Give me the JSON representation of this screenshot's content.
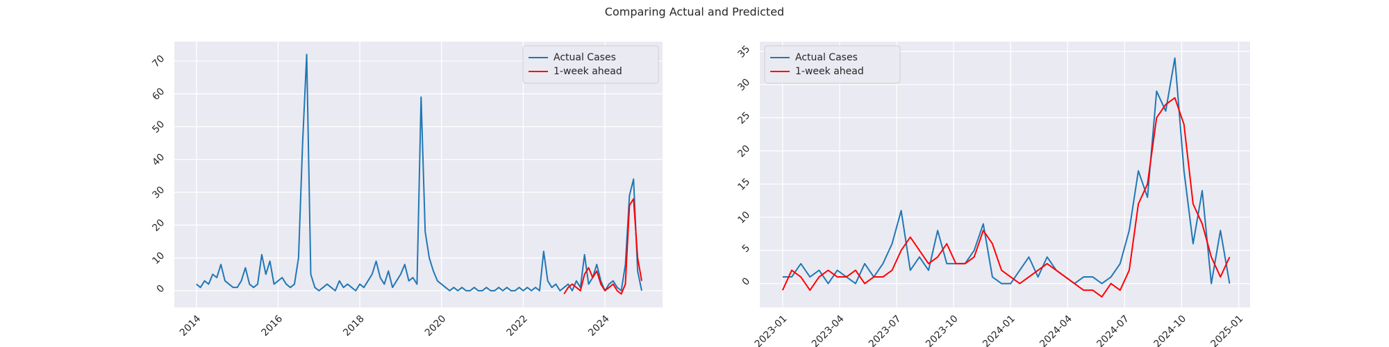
{
  "title": "Comparing Actual and Predicted",
  "chart_data": [
    {
      "type": "line",
      "legend": "upper right",
      "grid": true,
      "ylim": [
        -5.1,
        75.9
      ],
      "yticks": [
        0,
        10,
        20,
        30,
        40,
        50,
        60,
        70
      ],
      "xlim": [
        2013.46,
        2025.41
      ],
      "xticks": [
        2014,
        2016,
        2018,
        2020,
        2022,
        2024
      ],
      "series": [
        {
          "name": "Actual Cases",
          "color": "#1f77b4",
          "x": [
            2014.0,
            2014.1,
            2014.2,
            2014.3,
            2014.4,
            2014.5,
            2014.6,
            2014.7,
            2014.8,
            2014.9,
            2015.0,
            2015.1,
            2015.2,
            2015.3,
            2015.4,
            2015.5,
            2015.6,
            2015.7,
            2015.8,
            2015.9,
            2016.0,
            2016.1,
            2016.2,
            2016.3,
            2016.4,
            2016.5,
            2016.6,
            2016.7,
            2016.8,
            2016.9,
            2017.0,
            2017.1,
            2017.2,
            2017.3,
            2017.4,
            2017.5,
            2017.6,
            2017.7,
            2017.8,
            2017.9,
            2018.0,
            2018.1,
            2018.2,
            2018.3,
            2018.4,
            2018.5,
            2018.6,
            2018.7,
            2018.8,
            2018.9,
            2019.0,
            2019.1,
            2019.2,
            2019.3,
            2019.4,
            2019.5,
            2019.6,
            2019.7,
            2019.8,
            2019.9,
            2020.0,
            2020.1,
            2020.2,
            2020.3,
            2020.4,
            2020.5,
            2020.6,
            2020.7,
            2020.8,
            2020.9,
            2021.0,
            2021.1,
            2021.2,
            2021.3,
            2021.4,
            2021.5,
            2021.6,
            2021.7,
            2021.8,
            2021.9,
            2022.0,
            2022.1,
            2022.2,
            2022.3,
            2022.4,
            2022.5,
            2022.6,
            2022.7,
            2022.8,
            2022.9,
            2023.0,
            2023.1,
            2023.2,
            2023.3,
            2023.4,
            2023.5,
            2023.6,
            2023.7,
            2023.8,
            2023.9,
            2024.0,
            2024.1,
            2024.2,
            2024.3,
            2024.4,
            2024.5,
            2024.6,
            2024.7,
            2024.8,
            2024.9
          ],
          "values": [
            2,
            1,
            3,
            2,
            5,
            4,
            8,
            3,
            2,
            1,
            1,
            3,
            7,
            2,
            1,
            2,
            11,
            5,
            9,
            2,
            3,
            4,
            2,
            1,
            2,
            10,
            45,
            72,
            5,
            1,
            0,
            1,
            2,
            1,
            0,
            3,
            1,
            2,
            1,
            0,
            2,
            1,
            3,
            5,
            9,
            4,
            2,
            6,
            1,
            3,
            5,
            8,
            3,
            4,
            2,
            59,
            18,
            10,
            6,
            3,
            2,
            1,
            0,
            1,
            0,
            1,
            0,
            0,
            1,
            0,
            0,
            1,
            0,
            0,
            1,
            0,
            1,
            0,
            0,
            1,
            0,
            1,
            0,
            1,
            0,
            12,
            3,
            1,
            2,
            0,
            1,
            2,
            0,
            3,
            1,
            11,
            2,
            4,
            8,
            3,
            0,
            2,
            3,
            1,
            0,
            8,
            29,
            34,
            6,
            0
          ]
        },
        {
          "name": "1-week ahead",
          "color": "#ff0000",
          "x": [
            2023.0,
            2023.1,
            2023.2,
            2023.3,
            2023.4,
            2023.5,
            2023.6,
            2023.7,
            2023.8,
            2023.9,
            2024.0,
            2024.1,
            2024.2,
            2024.3,
            2024.4,
            2024.5,
            2024.6,
            2024.7,
            2024.8,
            2024.9
          ],
          "values": [
            -1,
            1,
            2,
            1,
            0,
            5,
            7,
            4,
            6,
            2,
            0,
            1,
            2,
            0,
            -1,
            2,
            26,
            28,
            10,
            3
          ]
        }
      ]
    },
    {
      "type": "line",
      "legend": "upper left",
      "grid": true,
      "ylim": [
        -3.6,
        36.47
      ],
      "yticks": [
        0,
        5,
        10,
        15,
        20,
        25,
        30,
        35
      ],
      "xlim": [
        2022.9,
        2025.05
      ],
      "xticks": [
        {
          "value": 2023.0,
          "label": "2023-01"
        },
        {
          "value": 2023.25,
          "label": "2023-04"
        },
        {
          "value": 2023.5,
          "label": "2023-07"
        },
        {
          "value": 2023.75,
          "label": "2023-10"
        },
        {
          "value": 2024.0,
          "label": "2024-01"
        },
        {
          "value": 2024.25,
          "label": "2024-04"
        },
        {
          "value": 2024.5,
          "label": "2024-07"
        },
        {
          "value": 2024.75,
          "label": "2024-10"
        },
        {
          "value": 2025.0,
          "label": "2025-01"
        }
      ],
      "series": [
        {
          "name": "Actual Cases",
          "color": "#1f77b4",
          "x": [
            2023.0,
            2023.04,
            2023.08,
            2023.12,
            2023.16,
            2023.2,
            2023.24,
            2023.28,
            2023.32,
            2023.36,
            2023.4,
            2023.44,
            2023.48,
            2023.52,
            2023.56,
            2023.6,
            2023.64,
            2023.68,
            2023.72,
            2023.76,
            2023.8,
            2023.84,
            2023.88,
            2023.92,
            2023.96,
            2024.0,
            2024.04,
            2024.08,
            2024.12,
            2024.16,
            2024.2,
            2024.24,
            2024.28,
            2024.32,
            2024.36,
            2024.4,
            2024.44,
            2024.48,
            2024.52,
            2024.56,
            2024.6,
            2024.64,
            2024.68,
            2024.72,
            2024.76,
            2024.8,
            2024.84,
            2024.88,
            2024.92,
            2024.96
          ],
          "values": [
            1,
            1,
            3,
            1,
            2,
            0,
            2,
            1,
            0,
            3,
            1,
            3,
            6,
            11,
            2,
            4,
            2,
            8,
            3,
            3,
            3,
            5,
            9,
            1,
            0,
            0,
            2,
            4,
            1,
            4,
            2,
            1,
            0,
            1,
            1,
            0,
            1,
            3,
            8,
            17,
            13,
            29,
            26,
            34,
            17,
            6,
            14,
            0,
            8,
            0
          ]
        },
        {
          "name": "1-week ahead",
          "color": "#ff0000",
          "x": [
            2023.0,
            2023.04,
            2023.08,
            2023.12,
            2023.16,
            2023.2,
            2023.24,
            2023.28,
            2023.32,
            2023.36,
            2023.4,
            2023.44,
            2023.48,
            2023.52,
            2023.56,
            2023.6,
            2023.64,
            2023.68,
            2023.72,
            2023.76,
            2023.8,
            2023.84,
            2023.88,
            2023.92,
            2023.96,
            2024.0,
            2024.04,
            2024.08,
            2024.12,
            2024.16,
            2024.2,
            2024.24,
            2024.28,
            2024.32,
            2024.36,
            2024.4,
            2024.44,
            2024.48,
            2024.52,
            2024.56,
            2024.6,
            2024.64,
            2024.68,
            2024.72,
            2024.76,
            2024.8,
            2024.84,
            2024.88,
            2024.92,
            2024.96
          ],
          "values": [
            -1,
            2,
            1,
            -1,
            1,
            2,
            1,
            1,
            2,
            0,
            1,
            1,
            2,
            5,
            7,
            5,
            3,
            4,
            6,
            3,
            3,
            4,
            8,
            6,
            2,
            1,
            0,
            1,
            2,
            3,
            2,
            1,
            0,
            -1,
            -1,
            -2,
            0,
            -1,
            2,
            12,
            15,
            25,
            27,
            28,
            24,
            12,
            9,
            4,
            1,
            4
          ]
        }
      ]
    }
  ]
}
